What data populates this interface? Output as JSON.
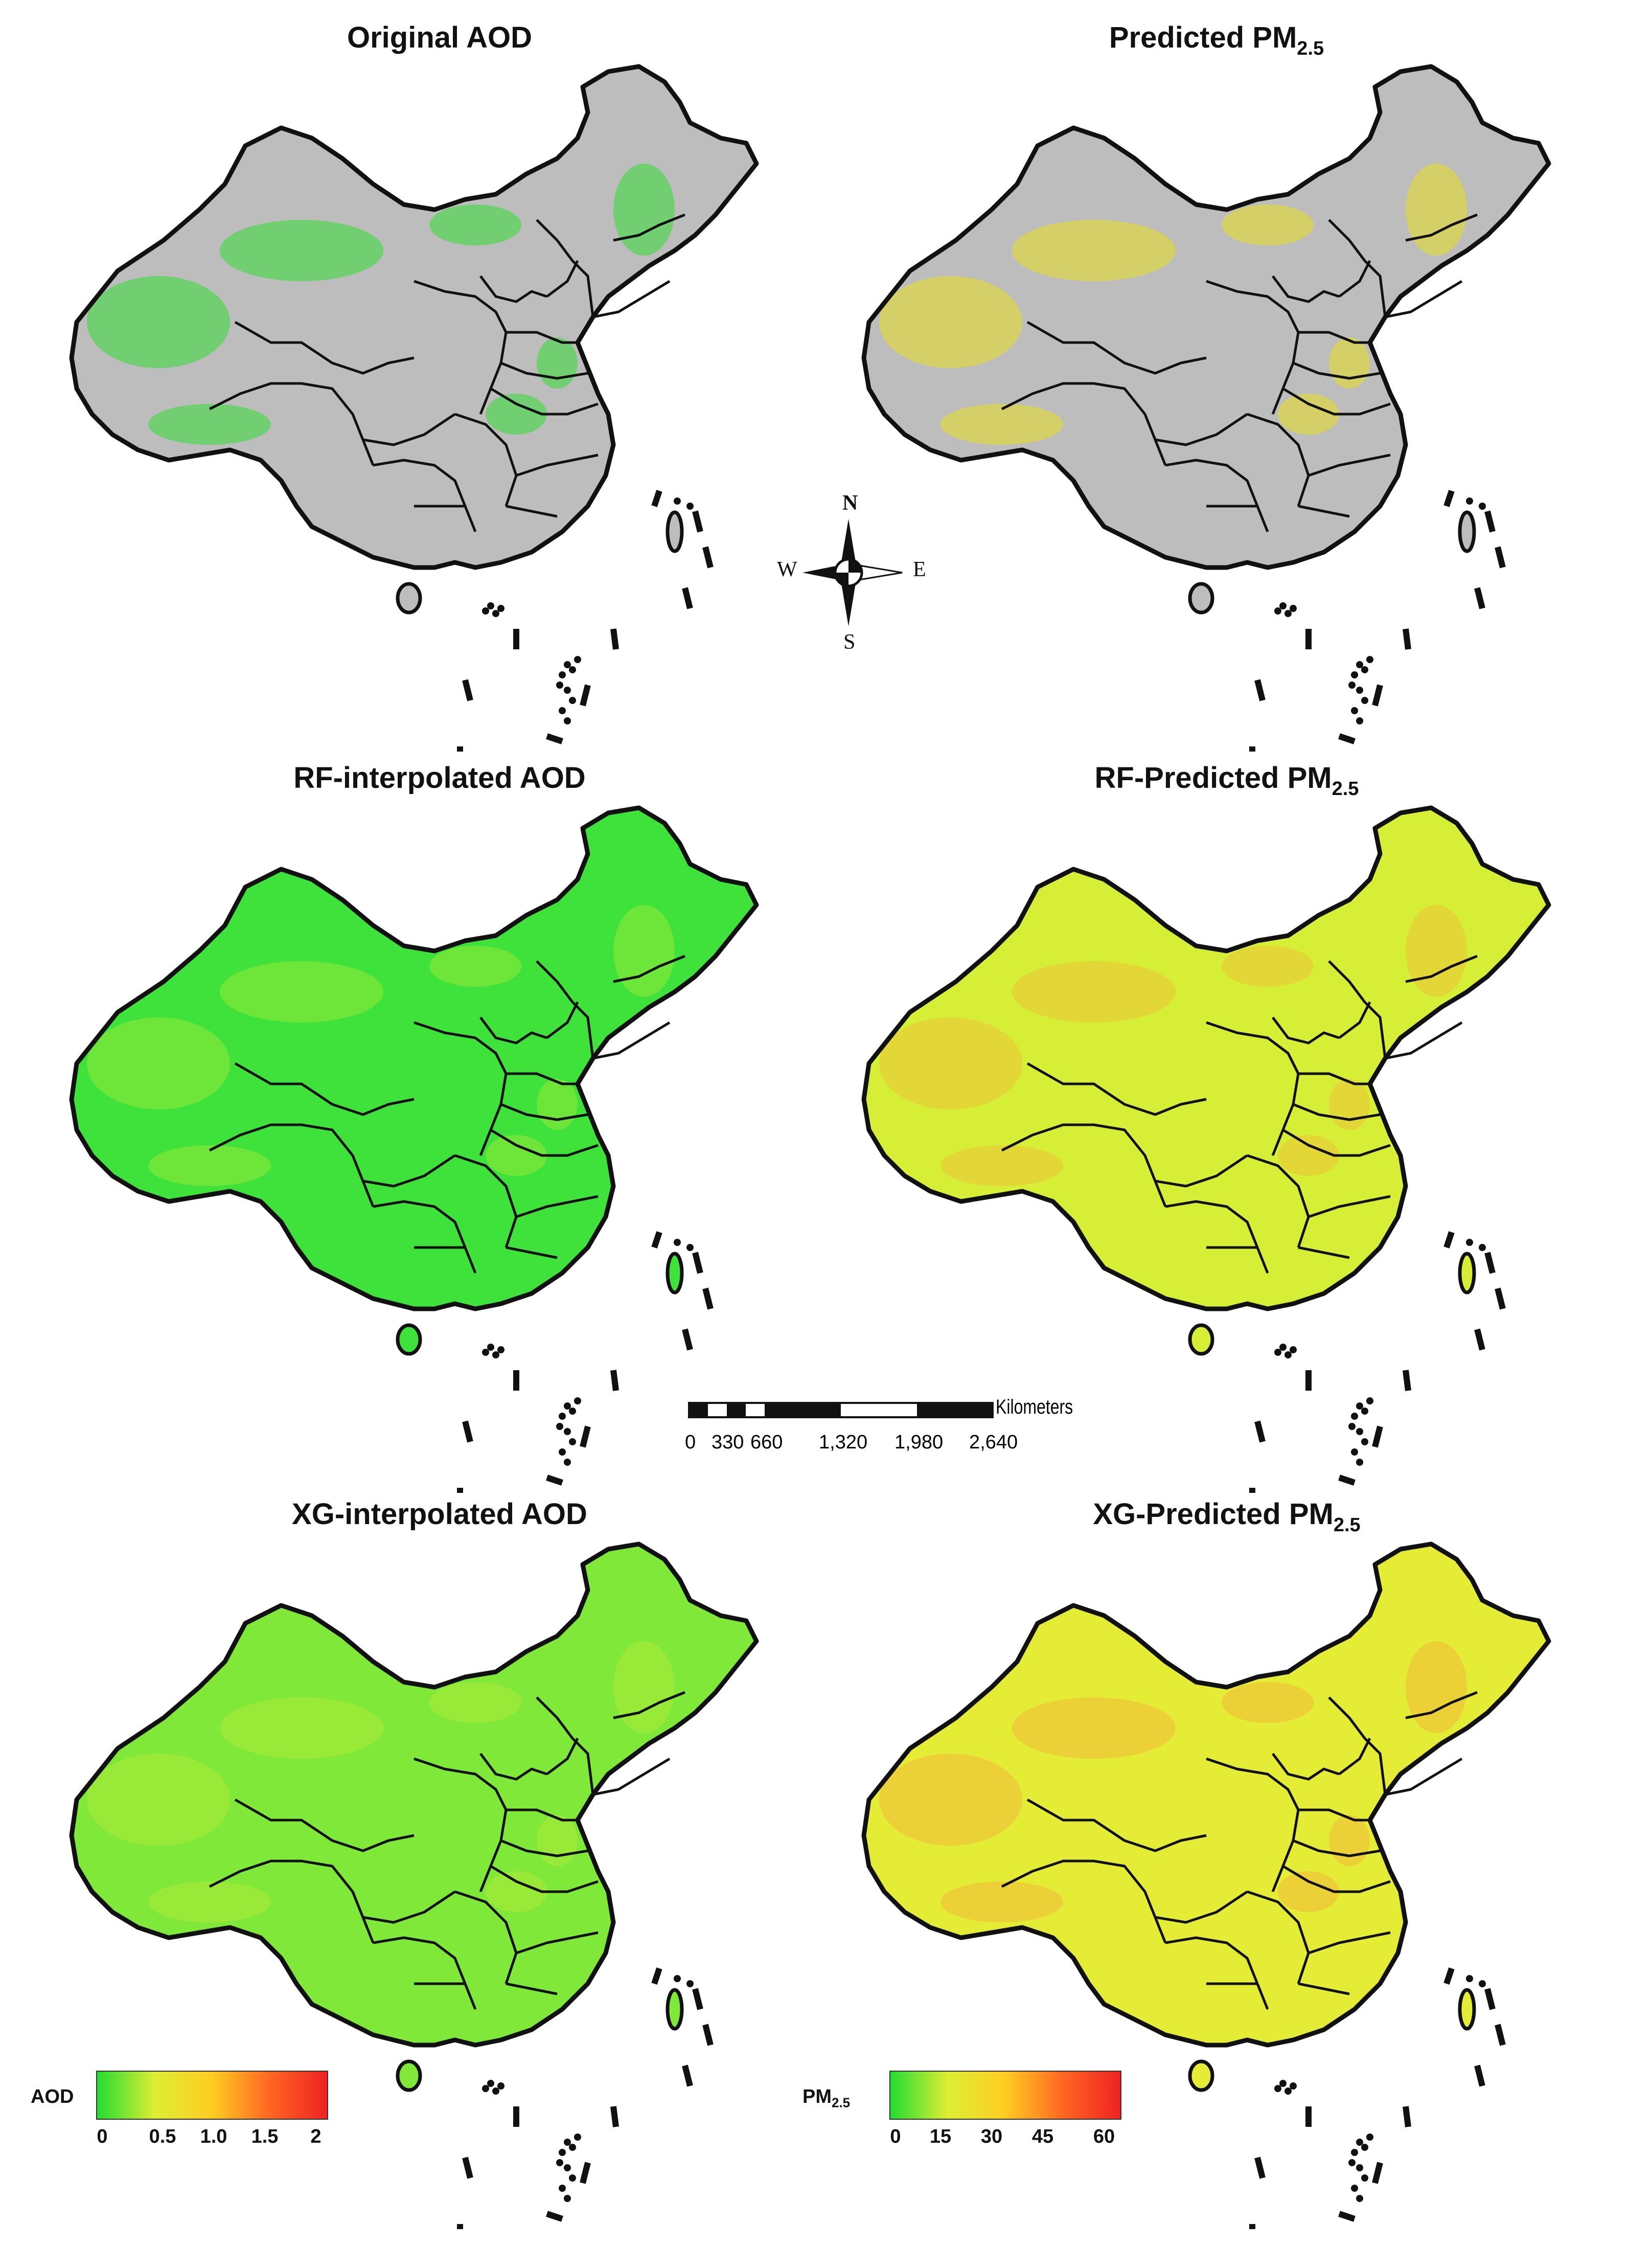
{
  "panels": [
    {
      "id": "original-aod",
      "title": "Original AOD",
      "title_sub": "",
      "fill": "gray",
      "overlay": "#33dd33"
    },
    {
      "id": "predicted-pm25",
      "title": "Predicted PM",
      "title_sub": "2.5",
      "fill": "gray",
      "overlay": "#e8e020"
    },
    {
      "id": "rf-interpolated-aod",
      "title": "RF-interpolated AOD",
      "title_sub": "",
      "fill": "#3ee23a",
      "overlay": "#a9e83a"
    },
    {
      "id": "rf-predicted-pm25",
      "title": "RF-Predicted PM",
      "title_sub": "2.5",
      "fill": "#d6ee35",
      "overlay": "#f4b83a"
    },
    {
      "id": "xg-interpolated-aod",
      "title": "XG-interpolated AOD",
      "title_sub": "",
      "fill": "#7fe838",
      "overlay": "#b8ec3a"
    },
    {
      "id": "xg-predicted-pm25",
      "title": "XG-Predicted PM",
      "title_sub": "2.5",
      "fill": "#e4ec35",
      "overlay": "#f4b03a"
    }
  ],
  "compass": {
    "n": "N",
    "s": "S",
    "e": "E",
    "w": "W"
  },
  "scale_bar": {
    "unit": "Kilometers",
    "ticks": [
      "0",
      "330",
      "660",
      "1,320",
      "1,980",
      "2,640"
    ]
  },
  "legend_aod": {
    "label": "AOD",
    "ticks": [
      "0",
      "0.5",
      "1.0",
      "1.5",
      "2"
    ],
    "colors": [
      "#22dd33",
      "#ddee33",
      "#ffcc22",
      "#ff6622",
      "#ee2222"
    ]
  },
  "legend_pm": {
    "label": "PM",
    "label_sub": "2.5",
    "ticks": [
      "0",
      "15",
      "30",
      "45",
      "60"
    ],
    "colors": [
      "#22dd33",
      "#ddee33",
      "#ffcc22",
      "#ff6622",
      "#ee2222"
    ]
  },
  "colors": {
    "gray": "#bdbdbd",
    "outline": "#111111"
  }
}
